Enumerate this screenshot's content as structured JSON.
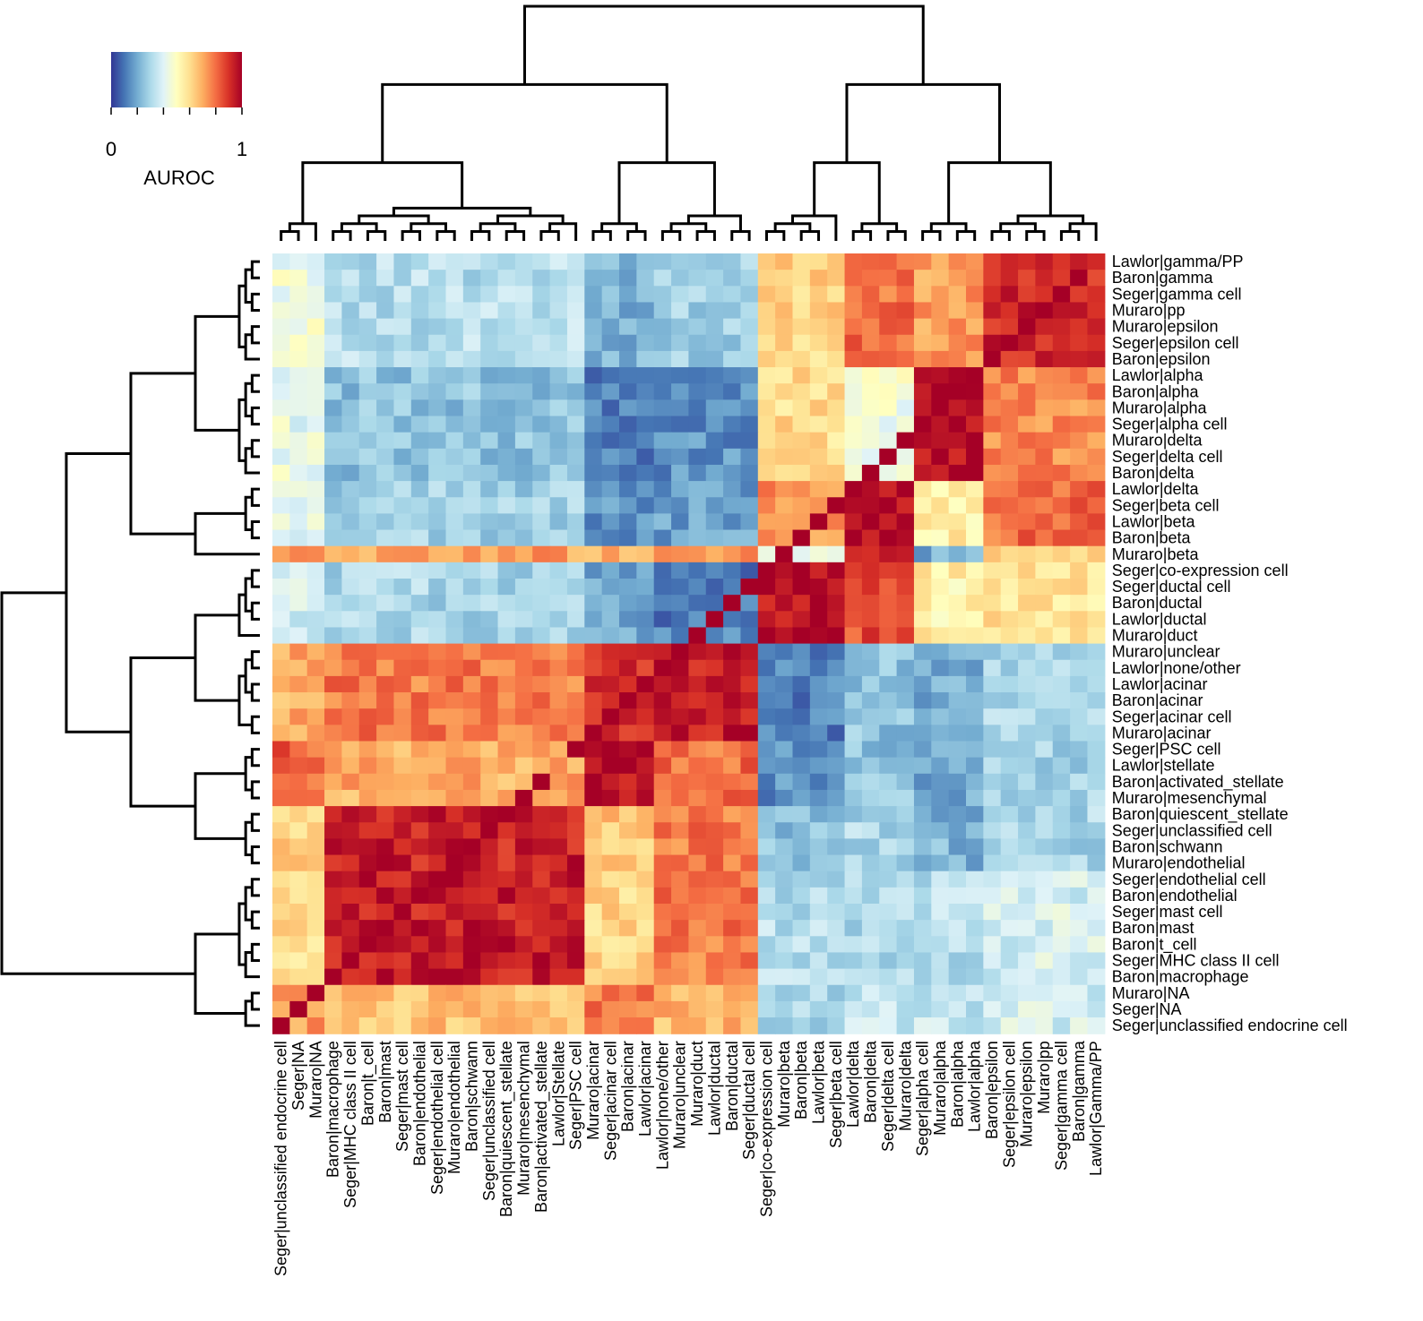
{
  "chart_data": {
    "type": "heatmap",
    "title": "",
    "legend": {
      "title": "AUROC",
      "min_label": "0",
      "max_label": "1",
      "range": [
        0,
        1
      ],
      "colors": [
        "#313695",
        "#4575b4",
        "#74add1",
        "#abd9e9",
        "#e0f3f8",
        "#ffffbf",
        "#fee090",
        "#fdae61",
        "#f46d43",
        "#d73027",
        "#a50026"
      ],
      "placement": "top-left"
    },
    "rows": [
      "Lawlor|gamma/PP",
      "Baron|gamma",
      "Seger|gamma cell",
      "Muraro|pp",
      "Muraro|epsilon",
      "Seger|epsilon cell",
      "Baron|epsilon",
      "Lawlor|alpha",
      "Baron|alpha",
      "Muraro|alpha",
      "Seger|alpha cell",
      "Muraro|delta",
      "Seger|delta cell",
      "Baron|delta",
      "Lawlor|delta",
      "Seger|beta cell",
      "Lawlor|beta",
      "Baron|beta",
      "Muraro|beta",
      "Seger|co-expression cell",
      "Seger|ductal cell",
      "Baron|ductal",
      "Lawlor|ductal",
      "Muraro|duct",
      "Muraro|unclear",
      "Lawlor|none/other",
      "Lawlor|acinar",
      "Baron|acinar",
      "Seger|acinar cell",
      "Muraro|acinar",
      "Seger|PSC cell",
      "Lawlor|stellate",
      "Baron|activated_stellate",
      "Muraro|mesenchymal",
      "Baron|quiescent_stellate",
      "Seger|unclassified cell",
      "Baron|schwann",
      "Muraro|endothelial",
      "Seger|endothelial cell",
      "Baron|endothelial",
      "Seger|mast cell",
      "Baron|mast",
      "Baron|t_cell",
      "Seger|MHC class II cell",
      "Baron|macrophage",
      "Muraro|NA",
      "Seger|NA",
      "Seger|unclassified endocrine cell"
    ],
    "columns": [
      "Seger|unclassified endocrine cell",
      "Seger|NA",
      "Muraro|NA",
      "Baron|macrophage",
      "Seger|MHC class II cell",
      "Baron|t_cell",
      "Baron|mast",
      "Seger|mast cell",
      "Baron|endothelial",
      "Seger|endothelial cell",
      "Muraro|endothelial",
      "Baron|schwann",
      "Seger|unclassified cell",
      "Baron|quiescent_stellate",
      "Muraro|mesenchymal",
      "Baron|activated_stellate",
      "Lawlor|Stellate",
      "Seger|PSC cell",
      "Muraro|acinar",
      "Seger|acinar cell",
      "Baron|acinar",
      "Lawlor|acinar",
      "Lawlor|none/other",
      "Muraro|unclear",
      "Muraro|duct",
      "Lawlor|ductal",
      "Baron|ductal",
      "Seger|ductal cell",
      "Seger|co-expression cell",
      "Muraro|beta",
      "Baron|beta",
      "Lawlor|beta",
      "Seger|beta cell",
      "Lawlor|delta",
      "Baron|delta",
      "Seger|delta cell",
      "Muraro|delta",
      "Seger|alpha cell",
      "Muraro|alpha",
      "Baron|alpha",
      "Lawlor|alpha",
      "Baron|epsilon",
      "Seger|epsilon cell",
      "Muraro|epsilon",
      "Muraro|pp",
      "Seger|gamma cell",
      "Baron|gamma",
      "Lawlor|Gamma/PP"
    ],
    "row_groups": [
      7,
      7,
      4,
      1,
      5,
      6,
      4,
      4,
      7,
      3
    ],
    "col_groups": [
      3,
      15,
      4,
      6,
      5,
      4,
      4,
      7
    ],
    "block_values": [
      [
        0.45,
        0.32,
        0.22,
        0.28,
        0.62,
        0.8,
        0.72,
        0.92
      ],
      [
        0.42,
        0.25,
        0.12,
        0.15,
        0.6,
        0.45,
        0.97,
        0.75
      ],
      [
        0.4,
        0.28,
        0.15,
        0.18,
        0.75,
        0.97,
        0.55,
        0.8
      ],
      [
        0.7,
        0.72,
        0.7,
        0.72,
        0.4,
        0.9,
        0.2,
        0.6
      ],
      [
        0.38,
        0.3,
        0.18,
        0.12,
        0.97,
        0.85,
        0.55,
        0.58
      ],
      [
        0.7,
        0.78,
        0.9,
        0.94,
        0.12,
        0.25,
        0.2,
        0.3
      ],
      [
        0.82,
        0.7,
        0.97,
        0.8,
        0.15,
        0.25,
        0.2,
        0.28
      ],
      [
        0.62,
        0.93,
        0.65,
        0.78,
        0.25,
        0.3,
        0.22,
        0.3
      ],
      [
        0.6,
        0.94,
        0.62,
        0.78,
        0.32,
        0.3,
        0.32,
        0.38
      ],
      [
        0.72,
        0.66,
        0.78,
        0.68,
        0.3,
        0.35,
        0.35,
        0.38
      ]
    ],
    "xlabel": "",
    "ylabel": ""
  }
}
